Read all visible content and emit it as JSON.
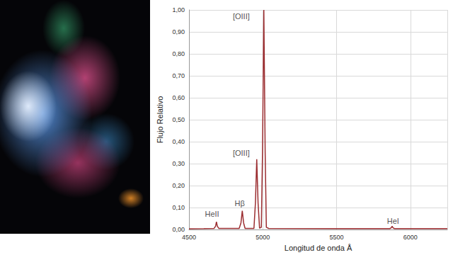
{
  "chart_data": {
    "type": "line",
    "x_label": "Longitud de onda Å",
    "y_label": "Flujo Relativo",
    "x": [
      4500,
      4600,
      4670,
      4680,
      4686,
      4692,
      4702,
      4840,
      4852,
      4861,
      4870,
      4880,
      4940,
      4950,
      4959,
      4968,
      4978,
      4990,
      4998,
      5007,
      5016,
      5024,
      5040,
      5500,
      5860,
      5870,
      5876,
      5882,
      5892,
      6250
    ],
    "values": [
      0.003,
      0.004,
      0.005,
      0.015,
      0.035,
      0.015,
      0.005,
      0.005,
      0.03,
      0.085,
      0.03,
      0.005,
      0.005,
      0.12,
      0.32,
      0.12,
      0.006,
      0.01,
      0.35,
      1.0,
      0.35,
      0.01,
      0.005,
      0.004,
      0.004,
      0.008,
      0.015,
      0.008,
      0.004,
      0.004
    ],
    "color": "#9b2d30",
    "xlim": [
      4500,
      6250
    ],
    "xticks": [
      4500,
      5000,
      5500,
      6000
    ],
    "ylim": [
      0,
      1
    ],
    "yticks": [
      {
        "value": 0,
        "label": "0,00"
      },
      {
        "value": 0.1,
        "label": "0,10"
      },
      {
        "value": 0.2,
        "label": "0,20"
      },
      {
        "value": 0.3,
        "label": "0,30"
      },
      {
        "value": 0.4,
        "label": "0,40"
      },
      {
        "value": 0.5,
        "label": "0,50"
      },
      {
        "value": 0.6,
        "label": "0,60"
      },
      {
        "value": 0.7,
        "label": "0,70"
      },
      {
        "value": 0.8,
        "label": "0,80"
      },
      {
        "value": 0.9,
        "label": "0,90"
      },
      {
        "value": 1,
        "label": "1,00"
      }
    ],
    "annotations": [
      {
        "text": "HeII",
        "x": 4656,
        "y": 0.07
      },
      {
        "text": "Hβ",
        "x": 4844,
        "y": 0.12
      },
      {
        "text": "[OIII]",
        "x": 4854,
        "y": 0.35
      },
      {
        "text": "[OIII]",
        "x": 4854,
        "y": 0.97
      },
      {
        "text": "HeI",
        "x": 5882,
        "y": 0.04
      }
    ],
    "grid": true
  }
}
